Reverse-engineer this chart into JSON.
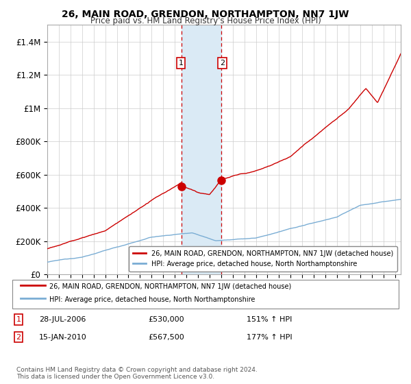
{
  "title": "26, MAIN ROAD, GRENDON, NORTHAMPTON, NN7 1JW",
  "subtitle": "Price paid vs. HM Land Registry's House Price Index (HPI)",
  "ylabel_ticks": [
    0,
    200000,
    400000,
    600000,
    800000,
    1000000,
    1200000,
    1400000
  ],
  "ylabel_labels": [
    "£0",
    "£200K",
    "£400K",
    "£600K",
    "£800K",
    "£1M",
    "£1.2M",
    "£1.4M"
  ],
  "ylim": [
    0,
    1500000
  ],
  "sale1_year": 2006.574,
  "sale1_price": 530000,
  "sale2_year": 2010.038,
  "sale2_price": 567500,
  "red_line_color": "#cc0000",
  "blue_line_color": "#7aadd4",
  "shade_color": "#daeaf5",
  "legend_label_red": "26, MAIN ROAD, GRENDON, NORTHAMPTON, NN7 1JW (detached house)",
  "legend_label_blue": "HPI: Average price, detached house, North Northamptonshire",
  "footer": "Contains HM Land Registry data © Crown copyright and database right 2024.\nThis data is licensed under the Open Government Licence v3.0.",
  "background_color": "#ffffff",
  "grid_color": "#cccccc",
  "title_fontsize": 10,
  "subtitle_fontsize": 8.5
}
